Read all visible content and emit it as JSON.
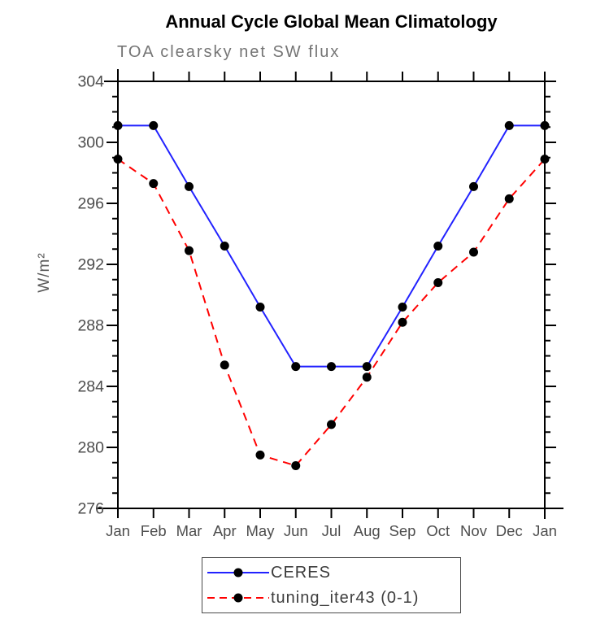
{
  "chart_data": {
    "type": "line",
    "title": "Annual Cycle Global Mean Climatology",
    "subtitle": "TOA clearsky net SW flux",
    "ylabel": "W/m²",
    "xlabel": "",
    "categories": [
      "Jan",
      "Feb",
      "Mar",
      "Apr",
      "May",
      "Jun",
      "Jul",
      "Aug",
      "Sep",
      "Oct",
      "Nov",
      "Dec",
      "Jan"
    ],
    "ylim": [
      276,
      304
    ],
    "yticks": [
      276,
      280,
      284,
      288,
      292,
      296,
      300,
      304
    ],
    "ytick_major": 4,
    "ytick_minor": 1,
    "grid": false,
    "legend_position": "bottom-center",
    "series": [
      {
        "name": "CERES",
        "color": "#2222ff",
        "line_style": "solid",
        "marker": "filled-circle",
        "values": [
          301.1,
          301.1,
          297.1,
          293.2,
          289.2,
          285.3,
          285.3,
          285.3,
          289.2,
          293.2,
          297.1,
          301.1,
          301.1
        ]
      },
      {
        "name": "tuning_iter43 (0-1)",
        "color": "#ff0000",
        "line_style": "dashed",
        "marker": "filled-circle",
        "values": [
          298.9,
          297.3,
          292.9,
          285.4,
          279.5,
          278.8,
          281.5,
          284.6,
          288.2,
          290.8,
          292.8,
          296.3,
          298.9
        ]
      }
    ]
  },
  "colors": {
    "background": "#ffffff",
    "axis": "#000000",
    "marker": "#000000",
    "title_text": "#000000",
    "subtitle_text": "#757575",
    "tick_label_text": "#4d4d4d",
    "legend_text": "#3d3d3d",
    "legend_border": "#4a4a4a"
  }
}
